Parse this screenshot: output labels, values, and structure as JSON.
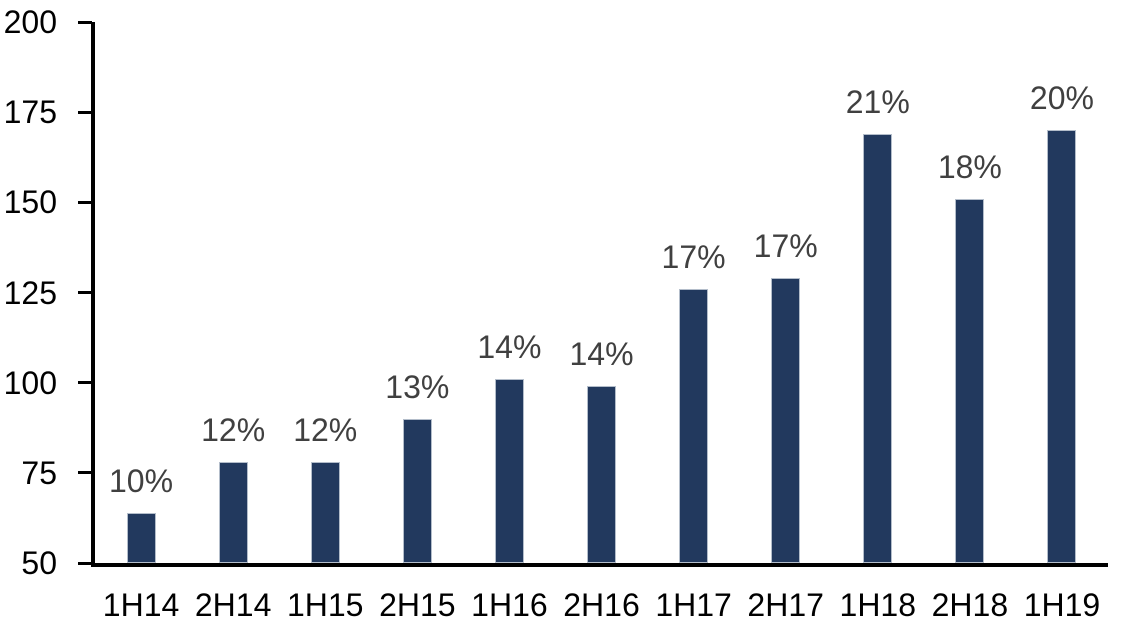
{
  "chart_data": {
    "type": "bar",
    "title": "",
    "xlabel": "",
    "ylabel": "",
    "categories": [
      "1H14",
      "2H14",
      "1H15",
      "2H15",
      "1H16",
      "2H16",
      "1H17",
      "2H17",
      "1H18",
      "2H18",
      "1H19"
    ],
    "values": [
      64,
      78,
      78,
      90,
      101,
      99,
      126,
      129,
      169,
      151,
      170
    ],
    "data_labels": [
      "10%",
      "12%",
      "12%",
      "13%",
      "14%",
      "14%",
      "17%",
      "17%",
      "21%",
      "18%",
      "20%"
    ],
    "ylim": [
      50,
      200
    ],
    "yticks": [
      200,
      175,
      150,
      125,
      100,
      75,
      50
    ],
    "grid": false,
    "legend": false,
    "colors": {
      "bar_fill": "#22395E",
      "bar_border": "#B3BDCA",
      "data_label": "#404040",
      "axis": "#000000",
      "tick_label": "#000000",
      "background": "#FFFFFF"
    }
  }
}
